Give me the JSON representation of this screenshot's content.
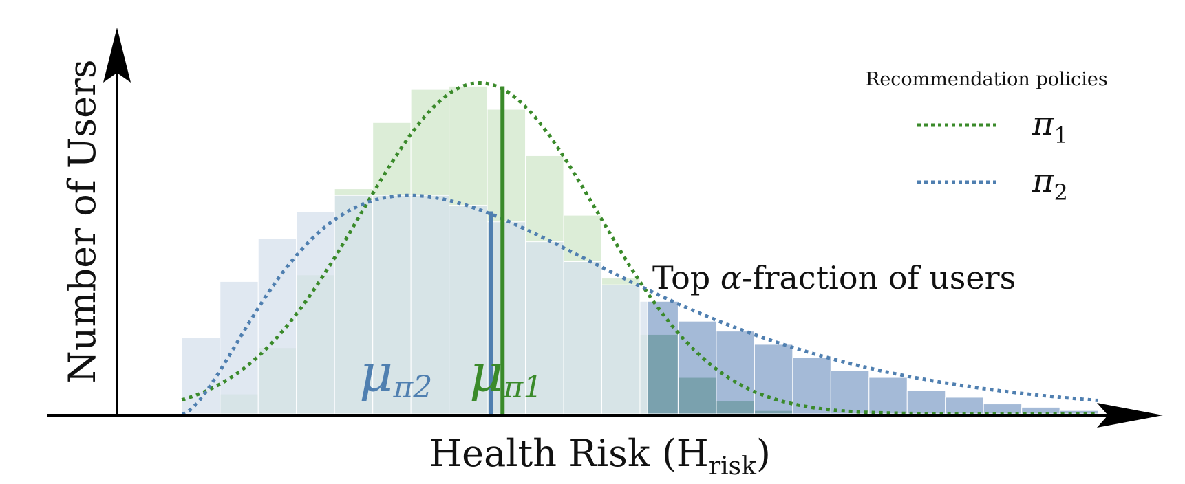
{
  "chart_data": {
    "type": "bar",
    "title": "",
    "xlabel": {
      "main": "Health Risk (H",
      "sub": "risk",
      "close": ")"
    },
    "ylabel": "Number of Users",
    "legend": {
      "title": "Recommendation policies",
      "placement": "top-right",
      "entries": [
        {
          "symbol": "π",
          "sub": "1",
          "style": "dotted",
          "color": "#3a8a2a"
        },
        {
          "symbol": "π",
          "sub": "2",
          "style": "dotted",
          "color": "#4f7fb0"
        }
      ]
    },
    "annotation": {
      "text_pre": "Top ",
      "symbol": "α",
      "text_post": "-fraction of users"
    },
    "bin_edges": [
      0,
      0.5,
      1,
      1.5,
      2,
      2.5,
      3,
      3.5,
      4,
      4.5,
      5,
      5.5,
      6,
      6.5,
      7,
      7.5,
      8,
      8.5,
      9,
      9.5,
      10,
      10.5,
      11,
      11.5,
      12
    ],
    "xlim": [
      -0.85,
      12.4
    ],
    "ylim": [
      0,
      1.08
    ],
    "top_fraction_start": 6.1,
    "series": [
      {
        "name": "π1",
        "color": "#3a8a2a",
        "light_fill": "#dcedd7",
        "dark_fill": "#6aa870",
        "mean": 4.2,
        "mean_label": {
          "symbol": "μ",
          "sub": "π1"
        },
        "curve": {
          "type": "gaussian",
          "mu": 3.9,
          "sigma": 1.55,
          "peak": 1.0
        },
        "values": [
          0.0,
          0.06,
          0.2,
          0.42,
          0.68,
          0.88,
          0.98,
          0.99,
          0.92,
          0.78,
          0.6,
          0.41,
          0.24,
          0.11,
          0.04,
          0.01,
          0.0,
          0.0,
          0.0,
          0.0,
          0.0,
          0.0,
          0.0,
          0.0
        ]
      },
      {
        "name": "π2",
        "color": "#4f7fb0",
        "light_fill": "#d6e0ec",
        "dark_fill": "#7d9dc6",
        "mean": 4.05,
        "mean_label": {
          "symbol": "μ",
          "sub": "π2"
        },
        "curve": {
          "type": "skewed",
          "k": 2.7,
          "theta": 1.75,
          "peak": 0.66
        },
        "values": [
          0.23,
          0.4,
          0.53,
          0.61,
          0.66,
          0.66,
          0.66,
          0.63,
          0.58,
          0.52,
          0.46,
          0.39,
          0.34,
          0.28,
          0.25,
          0.21,
          0.17,
          0.13,
          0.11,
          0.07,
          0.05,
          0.03,
          0.02,
          0.01
        ]
      }
    ]
  }
}
